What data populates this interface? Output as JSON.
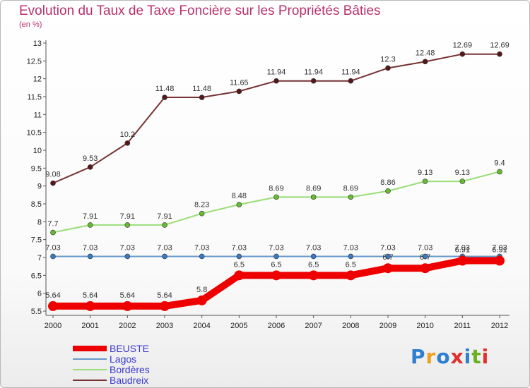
{
  "header": {
    "title": "Evolution du Taux de Taxe Foncière sur les Propriétés Bâties",
    "subtitle": "(en %)"
  },
  "logo": {
    "text": "Proxiti",
    "colors": [
      "#2f7fd0",
      "#f0a020",
      "#2f7fd0",
      "#e03030",
      "#2f7fd0",
      "#6ab020",
      "#e03030"
    ]
  },
  "chart_data": {
    "type": "line",
    "title": "Evolution du Taux de Taxe Foncière sur les Propriétés Bâties",
    "subtitle": "(en %)",
    "x": [
      "2000",
      "2001",
      "2002",
      "2003",
      "2004",
      "2005",
      "2006",
      "2007",
      "2008",
      "2009",
      "2010",
      "2011",
      "2012"
    ],
    "ylim": [
      5.5,
      13
    ],
    "yticks": [
      "5.5",
      "6",
      "6.5",
      "7",
      "7.5",
      "8",
      "8.5",
      "9",
      "9.5",
      "10",
      "10.5",
      "11",
      "11.5",
      "12",
      "12.5",
      "13"
    ],
    "grid": false,
    "legend": "bottom-left",
    "series": [
      {
        "name": "BEUSTE",
        "color": "#ee0000",
        "values": [
          5.64,
          5.64,
          5.64,
          5.64,
          5.8,
          6.5,
          6.5,
          6.5,
          6.5,
          6.7,
          6.7,
          6.91,
          6.91
        ],
        "labels": [
          "5.64",
          "5.64",
          "5.64",
          "5.64",
          "5.8",
          "6.5",
          "6.5",
          "6.5",
          "6.5",
          "6.7",
          "6.7",
          "6.91",
          "6.91"
        ]
      },
      {
        "name": "Lagos",
        "color": "#6699cc",
        "values": [
          7.03,
          7.03,
          7.03,
          7.03,
          7.03,
          7.03,
          7.03,
          7.03,
          7.03,
          7.03,
          7.03,
          7.03,
          7.03
        ],
        "labels": [
          "7.03",
          "7.03",
          "7.03",
          "7.03",
          "7.03",
          "7.03",
          "7.03",
          "7.03",
          "7.03",
          "7.03",
          "7.03",
          "7.03",
          "7.03"
        ]
      },
      {
        "name": "Bordères",
        "color": "#99dd77",
        "values": [
          7.7,
          7.91,
          7.91,
          7.91,
          8.23,
          8.48,
          8.69,
          8.69,
          8.69,
          8.86,
          9.13,
          9.13,
          9.4
        ],
        "labels": [
          "7.7",
          "7.91",
          "7.91",
          "7.91",
          "8.23",
          "8.48",
          "8.69",
          "8.69",
          "8.69",
          "8.86",
          "9.13",
          "9.13",
          "9.4"
        ]
      },
      {
        "name": "Baudreix",
        "color": "#773333",
        "values": [
          9.08,
          9.53,
          10.2,
          11.48,
          11.48,
          11.65,
          11.94,
          11.94,
          11.94,
          12.3,
          12.48,
          12.69,
          12.69
        ],
        "labels": [
          "9.08",
          "9.53",
          "10.2",
          "11.48",
          "11.48",
          "11.65",
          "11.94",
          "11.94",
          "11.94",
          "12.3",
          "12.48",
          "12.69",
          "12.69"
        ]
      }
    ]
  }
}
